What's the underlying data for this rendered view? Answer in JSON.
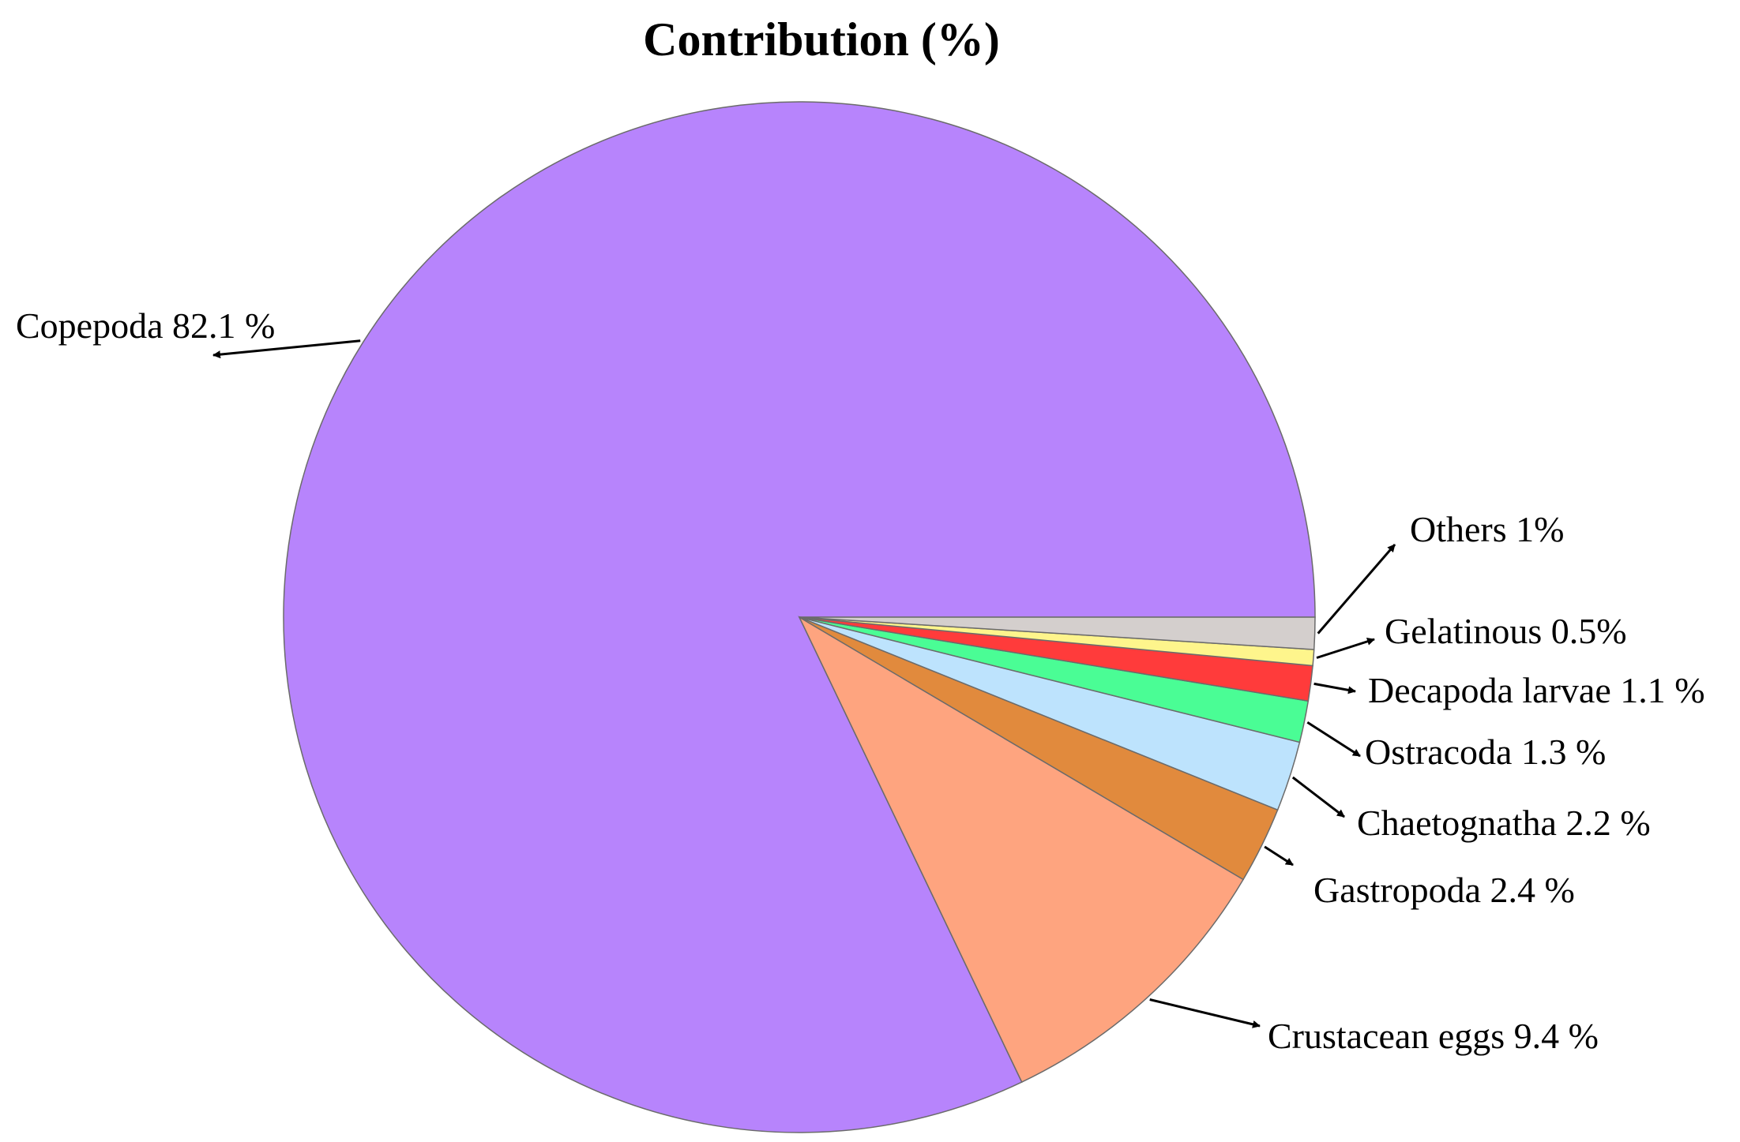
{
  "chart_data": {
    "type": "pie",
    "title": "Contribution (%)",
    "start": "3 o'clock",
    "direction": "counterclockwise",
    "slices": [
      {
        "name": "Copepoda",
        "value": 82.1,
        "label": "Copepoda 82.1 %",
        "color": "#b784fc"
      },
      {
        "name": "Crustacean eggs",
        "value": 9.4,
        "label": "Crustacean eggs 9.4 %",
        "color": "#fea47f"
      },
      {
        "name": "Gastropoda",
        "value": 2.4,
        "label": "Gastropoda 2.4 %",
        "color": "#e18a3d"
      },
      {
        "name": "Chaetognatha",
        "value": 2.2,
        "label": "Chaetognatha 2.2 %",
        "color": "#bde3fd"
      },
      {
        "name": "Ostracoda",
        "value": 1.3,
        "label": "Ostracoda 1.3 %",
        "color": "#4afd95"
      },
      {
        "name": "Decapoda larvae",
        "value": 1.1,
        "label": "Decapoda larvae 1.1 %",
        "color": "#ff3b3b"
      },
      {
        "name": "Gelatinous",
        "value": 0.5,
        "label": "Gelatinous 0.5%",
        "color": "#fef58c"
      },
      {
        "name": "Others",
        "value": 1,
        "label": "Others 1%",
        "color": "#d4cfcd"
      }
    ]
  }
}
